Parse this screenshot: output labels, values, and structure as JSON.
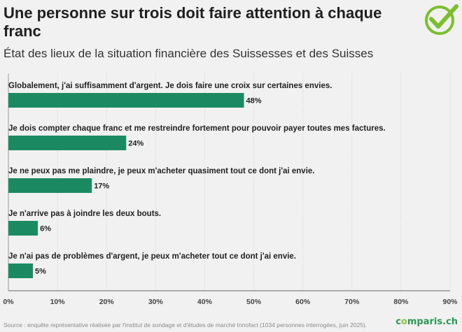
{
  "header": {
    "title": "Une personne sur trois doit faire attention à chaque franc",
    "subtitle": "État des lieux de la situation financière des Suissesses et des Suisses"
  },
  "footer": {
    "source": "Source : enquête représentative réalisée par l'institut de sondage et d'études de marché Innofact (1034 personnes interrogées, juin 2025).",
    "brand_prefix": "c",
    "brand_o": "o",
    "brand_suffix": "mparis.ch"
  },
  "logo": {
    "icon": "checkmark-icon",
    "color": "#7bbf2e"
  },
  "colors": {
    "bar": "#1b8a63",
    "background": "#f1f1f1",
    "gridline": "#cfcfcf",
    "brand": "#2c9a55"
  },
  "chart_data": {
    "type": "bar",
    "orientation": "horizontal",
    "categories": [
      "Globalement, j'ai suffisamment d'argent. Je dois faire une croix sur certaines envies.",
      "Je dois compter chaque franc et me restreindre fortement pour pouvoir payer toutes mes factures.",
      "Je ne peux pas me plaindre, je peux m'acheter quasiment tout ce dont j'ai envie.",
      "Je n'arrive pas à joindre les deux bouts.",
      "Je n'ai pas de problèmes d'argent, je peux m'acheter tout ce dont j'ai envie."
    ],
    "values": [
      48,
      24,
      17,
      6,
      5
    ],
    "data_labels": [
      "48%",
      "24%",
      "17%",
      "6%",
      "5%"
    ],
    "xlim": [
      0,
      90
    ],
    "xticks": [
      "0%",
      "10%",
      "20%",
      "30%",
      "40%",
      "50%",
      "60%",
      "70%",
      "80%",
      "90%"
    ],
    "grid": "vertical",
    "legend": "none"
  }
}
